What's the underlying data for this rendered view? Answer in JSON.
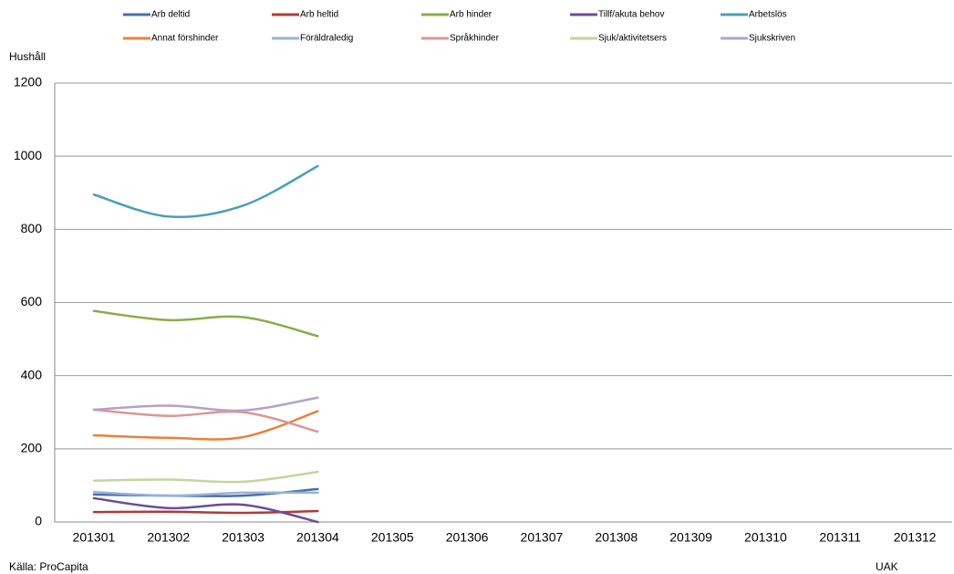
{
  "chart_data": {
    "type": "line",
    "y_label": "Hushåll",
    "source": "Källa: ProCapita",
    "footer": "UAK",
    "categories": [
      "201301",
      "201302",
      "201303",
      "201304",
      "201305",
      "201306",
      "201307",
      "201308",
      "201309",
      "201310",
      "201311",
      "201312"
    ],
    "series": [
      {
        "name": "Arb deltid",
        "color": "#4a6fa5",
        "values": [
          75,
          72,
          72,
          90,
          null,
          null,
          null,
          null,
          null,
          null,
          null,
          null
        ]
      },
      {
        "name": "Arb heltid",
        "color": "#b03a3a",
        "values": [
          27,
          28,
          25,
          30,
          null,
          null,
          null,
          null,
          null,
          null,
          null,
          null
        ]
      },
      {
        "name": "Arb hinder",
        "color": "#8aac4a",
        "values": [
          577,
          552,
          560,
          508,
          null,
          null,
          null,
          null,
          null,
          null,
          null,
          null
        ]
      },
      {
        "name": "Tillf/akuta behov",
        "color": "#6b4c9a",
        "values": [
          65,
          38,
          47,
          0,
          null,
          null,
          null,
          null,
          null,
          null,
          null,
          null
        ]
      },
      {
        "name": "Arbetslös",
        "color": "#4aa0b5",
        "values": [
          895,
          835,
          865,
          973,
          null,
          null,
          null,
          null,
          null,
          null,
          null,
          null
        ]
      },
      {
        "name": "Annat förshinder",
        "color": "#e8823a",
        "values": [
          237,
          230,
          232,
          303,
          null,
          null,
          null,
          null,
          null,
          null,
          null,
          null
        ]
      },
      {
        "name": "Föräldraledig",
        "color": "#95b3d7",
        "values": [
          82,
          72,
          80,
          80,
          null,
          null,
          null,
          null,
          null,
          null,
          null,
          null
        ]
      },
      {
        "name": "Språkhinder",
        "color": "#d99795",
        "values": [
          307,
          290,
          300,
          247,
          null,
          null,
          null,
          null,
          null,
          null,
          null,
          null
        ]
      },
      {
        "name": "Sjuk/aktivitetsers",
        "color": "#c3d69b",
        "values": [
          113,
          116,
          110,
          137,
          null,
          null,
          null,
          null,
          null,
          null,
          null,
          null
        ]
      },
      {
        "name": "Sjukskriven",
        "color": "#b3a2c7",
        "values": [
          307,
          318,
          305,
          340,
          null,
          null,
          null,
          null,
          null,
          null,
          null,
          null
        ]
      }
    ],
    "ylim": [
      0,
      1200
    ],
    "yticks": [
      0,
      200,
      400,
      600,
      800,
      1000,
      1200
    ],
    "grid": true
  }
}
